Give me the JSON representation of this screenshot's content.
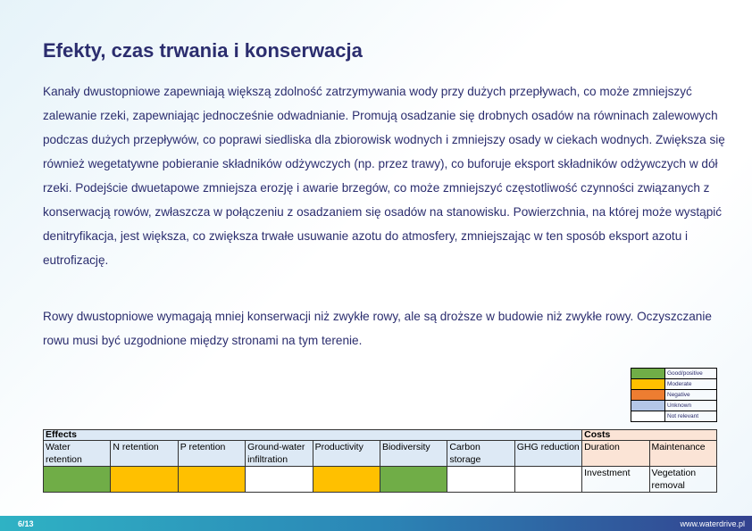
{
  "title": "Efekty, czas trwania i konserwacja",
  "paragraphs": [
    "Kanały dwustopniowe zapewniają większą zdolność zatrzymywania wody przy dużych przepływach, co może zmniejszyć zalewanie rzeki, zapewniając jednocześnie odwadnianie. Promują osadzanie się drobnych osadów na równinach zalewowych podczas dużych przepływów, co poprawi siedliska dla zbiorowisk wodnych i zmniejszy osady w ciekach wodnych. Zwiększa się również wegetatywne pobieranie składników odżywczych (np. przez trawy), co buforuje eksport składników odżywczych w dół rzeki. Podejście dwuetapowe zmniejsza erozję i awarie brzegów, co może zmniejszyć częstotliwość czynności związanych z konserwacją rowów, zwłaszcza w połączeniu z osadzaniem się osadów na stanowisku. Powierzchnia, na której może wystąpić denitryfikacja, jest większa, co zwiększa trwałe usuwanie azotu do atmosfery, zmniejszając w ten sposób eksport azotu i eutrofizację.",
    "Rowy dwustopniowe wymagają mniej konserwacji niż zwykłe rowy, ale są droższe w budowie niż zwykłe rowy. Oczyszczanie rowu musi być uzgodnione między stronami na tym terenie."
  ],
  "legend": [
    {
      "label": "Good/positive",
      "color": "#70ad47"
    },
    {
      "label": "Moderate",
      "color": "#ffc000"
    },
    {
      "label": "Negative",
      "color": "#ed7d31"
    },
    {
      "label": "Unknown",
      "color": "#b4c7e7"
    },
    {
      "label": "Not relevant",
      "color": "#ffffff"
    }
  ],
  "table": {
    "effects_header": "Effects",
    "costs_header": "Costs",
    "effects": [
      {
        "label": "Water retention",
        "color": "#70ad47"
      },
      {
        "label": "N retention",
        "color": "#ffc000"
      },
      {
        "label": "P retention",
        "color": "#ffc000"
      },
      {
        "label": "Ground-water infiltration",
        "color": "#ffffff"
      },
      {
        "label": "Productivity",
        "color": "#ffc000"
      },
      {
        "label": "Biodiversity",
        "color": "#70ad47"
      },
      {
        "label": "Carbon storage",
        "color": "#ffffff"
      },
      {
        "label": "GHG reduction",
        "color": "#ffffff"
      }
    ],
    "costs": [
      {
        "label": "Duration",
        "value": "Investment"
      },
      {
        "label": "Maintenance",
        "value": "Vegetation removal"
      }
    ]
  },
  "footer": {
    "page": "6/13",
    "url": "www.waterdrive.pl"
  }
}
